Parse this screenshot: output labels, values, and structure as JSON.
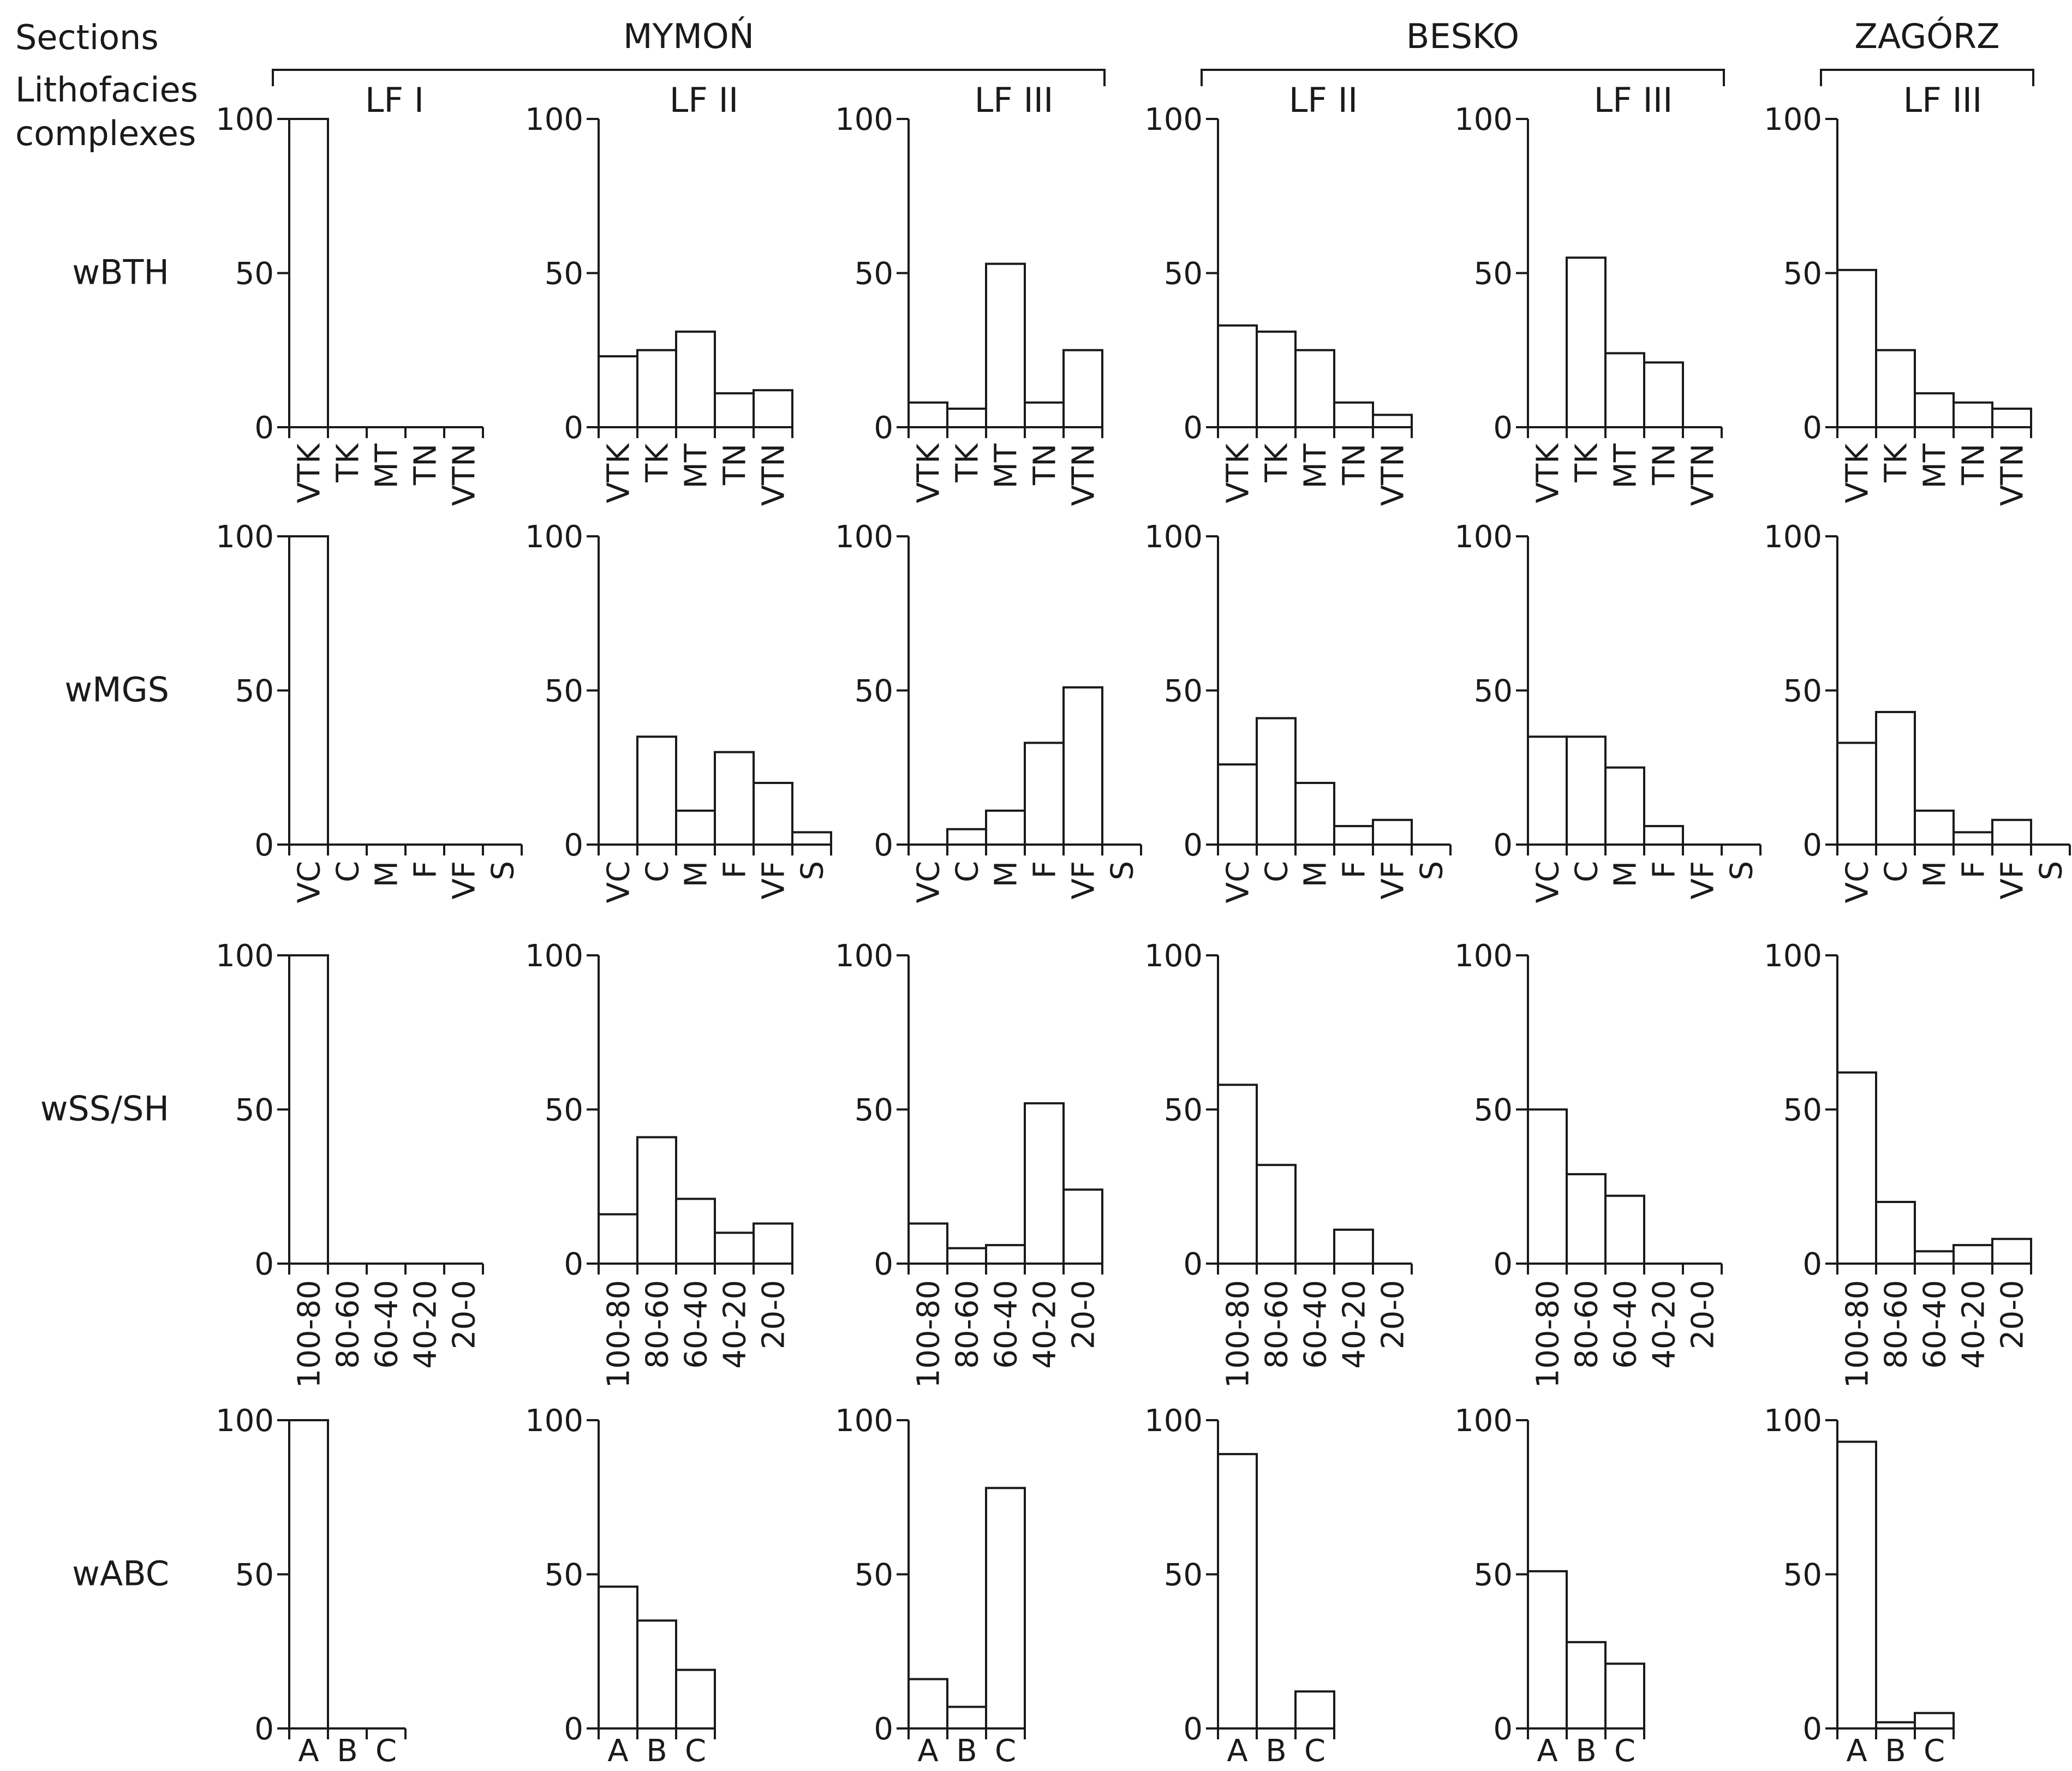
{
  "header": {
    "sections_label": "Sections",
    "lithofacies_label_line1": "Lithofacies",
    "lithofacies_label_line2": "complexes",
    "sections": [
      {
        "name": "MYMOŃ",
        "columns": [
          0,
          1,
          2
        ]
      },
      {
        "name": "BESKO",
        "columns": [
          3,
          4
        ]
      },
      {
        "name": "ZAGÓRZ",
        "columns": [
          5
        ]
      }
    ],
    "columns": [
      "LF I",
      "LF II",
      "LF III",
      "LF II",
      "LF III",
      "LF III"
    ]
  },
  "row_labels": [
    "wBTH",
    "wMGS",
    "wSS/SH",
    "wABC"
  ],
  "chart_data": [
    {
      "type": "bar",
      "row": "wBTH",
      "section": "MYMOŃ",
      "complex": "LF I",
      "categories": [
        "VTK",
        "TK",
        "MT",
        "TN",
        "VTN"
      ],
      "values": [
        100,
        0,
        0,
        0,
        0
      ],
      "ylim": [
        0,
        100
      ],
      "yticks": [
        0,
        50,
        100
      ]
    },
    {
      "type": "bar",
      "row": "wBTH",
      "section": "MYMOŃ",
      "complex": "LF II",
      "categories": [
        "VTK",
        "TK",
        "MT",
        "TN",
        "VTN"
      ],
      "values": [
        23,
        25,
        31,
        11,
        12
      ],
      "ylim": [
        0,
        100
      ],
      "yticks": [
        0,
        50,
        100
      ]
    },
    {
      "type": "bar",
      "row": "wBTH",
      "section": "MYMOŃ",
      "complex": "LF III",
      "categories": [
        "VTK",
        "TK",
        "MT",
        "TN",
        "VTN"
      ],
      "values": [
        8,
        6,
        53,
        8,
        25
      ],
      "ylim": [
        0,
        100
      ],
      "yticks": [
        0,
        50,
        100
      ]
    },
    {
      "type": "bar",
      "row": "wBTH",
      "section": "BESKO",
      "complex": "LF II",
      "categories": [
        "VTK",
        "TK",
        "MT",
        "TN",
        "VTN"
      ],
      "values": [
        33,
        31,
        25,
        8,
        4
      ],
      "ylim": [
        0,
        100
      ],
      "yticks": [
        0,
        50,
        100
      ]
    },
    {
      "type": "bar",
      "row": "wBTH",
      "section": "BESKO",
      "complex": "LF III",
      "categories": [
        "VTK",
        "TK",
        "MT",
        "TN",
        "VTN"
      ],
      "values": [
        0,
        55,
        24,
        21,
        0
      ],
      "ylim": [
        0,
        100
      ],
      "yticks": [
        0,
        50,
        100
      ]
    },
    {
      "type": "bar",
      "row": "wBTH",
      "section": "ZAGÓRZ",
      "complex": "LF III",
      "categories": [
        "VTK",
        "TK",
        "MT",
        "TN",
        "VTN"
      ],
      "values": [
        51,
        25,
        11,
        8,
        6
      ],
      "ylim": [
        0,
        100
      ],
      "yticks": [
        0,
        50,
        100
      ]
    },
    {
      "type": "bar",
      "row": "wMGS",
      "section": "MYMOŃ",
      "complex": "LF I",
      "categories": [
        "VC",
        "C",
        "M",
        "F",
        "VF",
        "S"
      ],
      "values": [
        100,
        0,
        0,
        0,
        0,
        0
      ],
      "ylim": [
        0,
        100
      ],
      "yticks": [
        0,
        50,
        100
      ]
    },
    {
      "type": "bar",
      "row": "wMGS",
      "section": "MYMOŃ",
      "complex": "LF II",
      "categories": [
        "VC",
        "C",
        "M",
        "F",
        "VF",
        "S"
      ],
      "values": [
        0,
        35,
        11,
        30,
        20,
        4
      ],
      "ylim": [
        0,
        100
      ],
      "yticks": [
        0,
        50,
        100
      ]
    },
    {
      "type": "bar",
      "row": "wMGS",
      "section": "MYMOŃ",
      "complex": "LF III",
      "categories": [
        "VC",
        "C",
        "M",
        "F",
        "VF",
        "S"
      ],
      "values": [
        0,
        5,
        11,
        33,
        51,
        0
      ],
      "ylim": [
        0,
        100
      ],
      "yticks": [
        0,
        50,
        100
      ]
    },
    {
      "type": "bar",
      "row": "wMGS",
      "section": "BESKO",
      "complex": "LF II",
      "categories": [
        "VC",
        "C",
        "M",
        "F",
        "VF",
        "S"
      ],
      "values": [
        26,
        41,
        20,
        6,
        8,
        0
      ],
      "ylim": [
        0,
        100
      ],
      "yticks": [
        0,
        50,
        100
      ]
    },
    {
      "type": "bar",
      "row": "wMGS",
      "section": "BESKO",
      "complex": "LF III",
      "categories": [
        "VC",
        "C",
        "M",
        "F",
        "VF",
        "S"
      ],
      "values": [
        35,
        35,
        25,
        6,
        0,
        0
      ],
      "ylim": [
        0,
        100
      ],
      "yticks": [
        0,
        50,
        100
      ]
    },
    {
      "type": "bar",
      "row": "wMGS",
      "section": "ZAGÓRZ",
      "complex": "LF III",
      "categories": [
        "VC",
        "C",
        "M",
        "F",
        "VF",
        "S"
      ],
      "values": [
        33,
        43,
        11,
        4,
        8,
        0
      ],
      "ylim": [
        0,
        100
      ],
      "yticks": [
        0,
        50,
        100
      ]
    },
    {
      "type": "bar",
      "row": "wSS/SH",
      "section": "MYMOŃ",
      "complex": "LF I",
      "categories": [
        "100-80",
        "80-60",
        "60-40",
        "40-20",
        "20-0"
      ],
      "values": [
        100,
        0,
        0,
        0,
        0
      ],
      "ylim": [
        0,
        100
      ],
      "yticks": [
        0,
        50,
        100
      ]
    },
    {
      "type": "bar",
      "row": "wSS/SH",
      "section": "MYMOŃ",
      "complex": "LF II",
      "categories": [
        "100-80",
        "80-60",
        "60-40",
        "40-20",
        "20-0"
      ],
      "values": [
        16,
        41,
        21,
        10,
        13
      ],
      "ylim": [
        0,
        100
      ],
      "yticks": [
        0,
        50,
        100
      ]
    },
    {
      "type": "bar",
      "row": "wSS/SH",
      "section": "MYMOŃ",
      "complex": "LF III",
      "categories": [
        "100-80",
        "80-60",
        "60-40",
        "40-20",
        "20-0"
      ],
      "values": [
        13,
        5,
        6,
        52,
        24
      ],
      "ylim": [
        0,
        100
      ],
      "yticks": [
        0,
        50,
        100
      ]
    },
    {
      "type": "bar",
      "row": "wSS/SH",
      "section": "BESKO",
      "complex": "LF II",
      "categories": [
        "100-80",
        "80-60",
        "60-40",
        "40-20",
        "20-0"
      ],
      "values": [
        58,
        32,
        0,
        11,
        0
      ],
      "ylim": [
        0,
        100
      ],
      "yticks": [
        0,
        50,
        100
      ]
    },
    {
      "type": "bar",
      "row": "wSS/SH",
      "section": "BESKO",
      "complex": "LF III",
      "categories": [
        "100-80",
        "80-60",
        "60-40",
        "40-20",
        "20-0"
      ],
      "values": [
        50,
        29,
        22,
        0,
        0
      ],
      "ylim": [
        0,
        100
      ],
      "yticks": [
        0,
        50,
        100
      ]
    },
    {
      "type": "bar",
      "row": "wSS/SH",
      "section": "ZAGÓRZ",
      "complex": "LF III",
      "categories": [
        "100-80",
        "80-60",
        "60-40",
        "40-20",
        "20-0"
      ],
      "values": [
        62,
        20,
        4,
        6,
        8
      ],
      "ylim": [
        0,
        100
      ],
      "yticks": [
        0,
        50,
        100
      ]
    },
    {
      "type": "bar",
      "row": "wABC",
      "section": "MYMOŃ",
      "complex": "LF I",
      "categories": [
        "A",
        "B",
        "C"
      ],
      "values": [
        100,
        0,
        0
      ],
      "ylim": [
        0,
        100
      ],
      "yticks": [
        0,
        50,
        100
      ]
    },
    {
      "type": "bar",
      "row": "wABC",
      "section": "MYMOŃ",
      "complex": "LF II",
      "categories": [
        "A",
        "B",
        "C"
      ],
      "values": [
        46,
        35,
        19
      ],
      "ylim": [
        0,
        100
      ],
      "yticks": [
        0,
        50,
        100
      ]
    },
    {
      "type": "bar",
      "row": "wABC",
      "section": "MYMOŃ",
      "complex": "LF III",
      "categories": [
        "A",
        "B",
        "C"
      ],
      "values": [
        16,
        7,
        78
      ],
      "ylim": [
        0,
        100
      ],
      "yticks": [
        0,
        50,
        100
      ]
    },
    {
      "type": "bar",
      "row": "wABC",
      "section": "BESKO",
      "complex": "LF II",
      "categories": [
        "A",
        "B",
        "C"
      ],
      "values": [
        89,
        0,
        12
      ],
      "ylim": [
        0,
        100
      ],
      "yticks": [
        0,
        50,
        100
      ]
    },
    {
      "type": "bar",
      "row": "wABC",
      "section": "BESKO",
      "complex": "LF III",
      "categories": [
        "A",
        "B",
        "C"
      ],
      "values": [
        51,
        28,
        21
      ],
      "ylim": [
        0,
        100
      ],
      "yticks": [
        0,
        50,
        100
      ]
    },
    {
      "type": "bar",
      "row": "wABC",
      "section": "ZAGÓRZ",
      "complex": "LF III",
      "categories": [
        "A",
        "B",
        "C"
      ],
      "values": [
        93,
        2,
        5
      ],
      "ylim": [
        0,
        100
      ],
      "yticks": [
        0,
        50,
        100
      ]
    }
  ]
}
